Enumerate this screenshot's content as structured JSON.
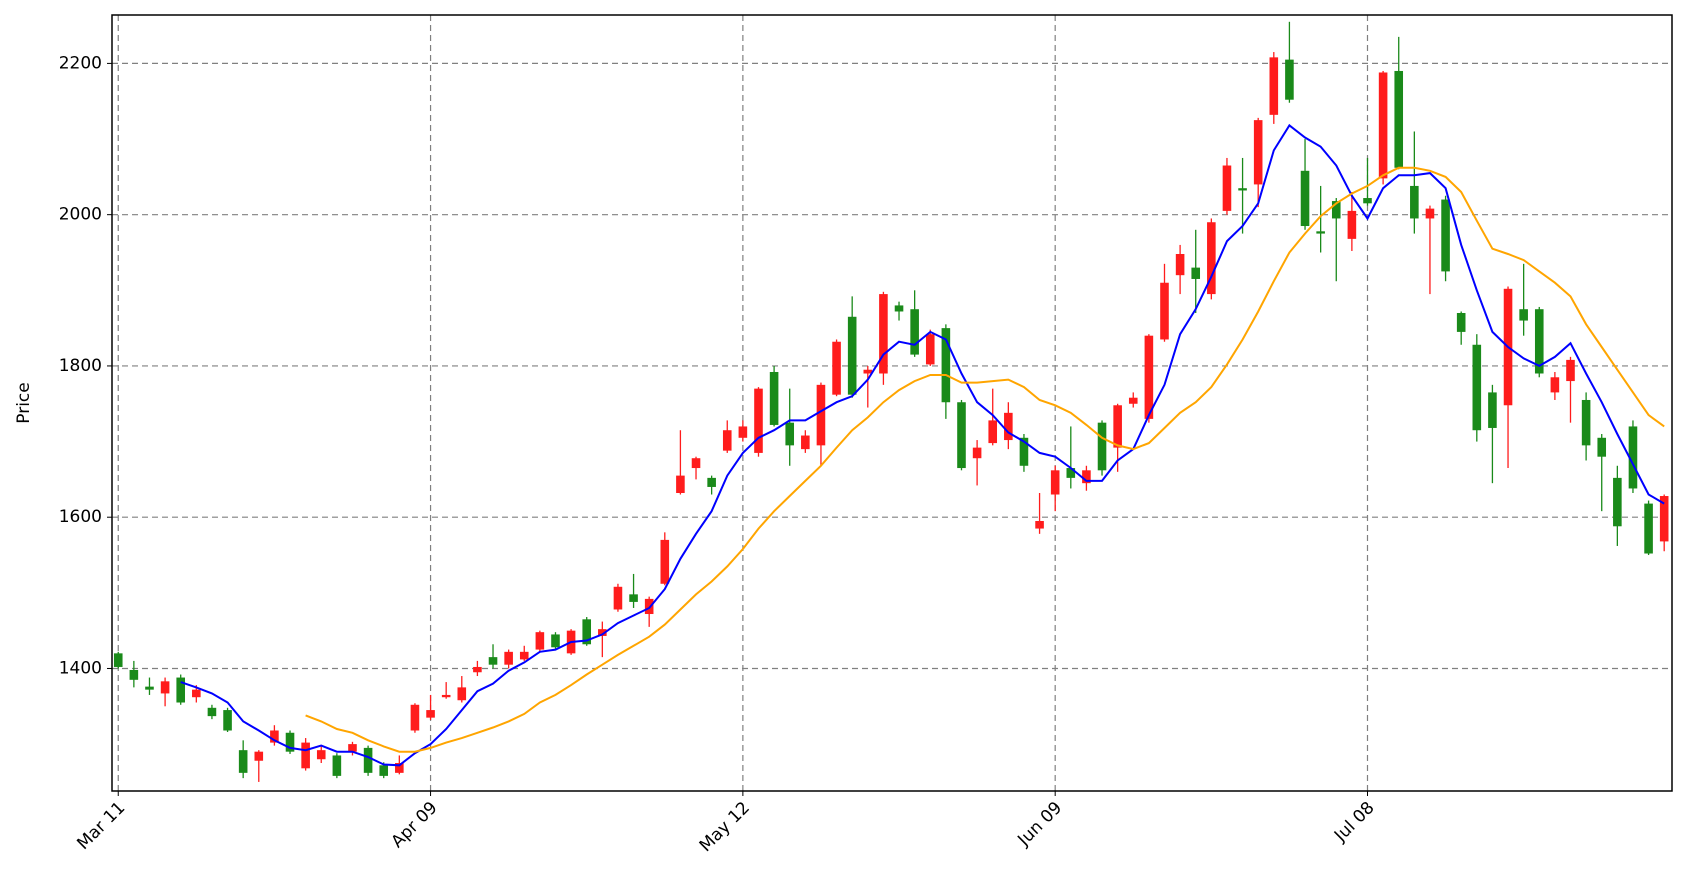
{
  "chart_data": {
    "type": "candlestick",
    "y_label": "Price",
    "categories": [
      "Mar 11",
      null,
      null,
      null,
      null,
      null,
      null,
      null,
      null,
      null,
      null,
      null,
      null,
      null,
      null,
      null,
      null,
      null,
      null,
      null,
      "Apr 09",
      null,
      null,
      null,
      null,
      null,
      null,
      null,
      null,
      null,
      null,
      null,
      null,
      null,
      null,
      null,
      null,
      null,
      null,
      null,
      "May 12",
      null,
      null,
      null,
      null,
      null,
      null,
      null,
      null,
      null,
      null,
      null,
      null,
      null,
      null,
      null,
      null,
      null,
      null,
      null,
      "Jun 09",
      null,
      null,
      null,
      null,
      null,
      null,
      null,
      null,
      null,
      null,
      null,
      null,
      null,
      null,
      null,
      null,
      null,
      null,
      null,
      "Jul 08",
      null,
      null,
      null,
      null,
      null,
      null,
      null,
      null,
      null,
      null,
      null,
      null,
      null,
      null,
      null,
      null,
      null,
      null,
      null
    ],
    "open": [
      1420,
      1398,
      1376,
      1367,
      1388,
      1362,
      1348,
      1345,
      1292,
      1278,
      1302,
      1315,
      1268,
      1280,
      1285,
      1290,
      1295,
      1272,
      1262,
      1318,
      1335,
      1362,
      1358,
      1395,
      1415,
      1405,
      1412,
      1425,
      1445,
      1420,
      1465,
      1443,
      1478,
      1498,
      1472,
      1512,
      1632,
      1665,
      1652,
      1688,
      1705,
      1685,
      1792,
      1725,
      1690,
      1695,
      1762,
      1865,
      1790,
      1790,
      1880,
      1875,
      1802,
      1850,
      1752,
      1678,
      1698,
      1702,
      1705,
      1585,
      1630,
      1665,
      1645,
      1725,
      1692,
      1750,
      1730,
      1835,
      1920,
      1930,
      1895,
      2005,
      2035,
      2040,
      2132,
      2205,
      2058,
      1978,
      2018,
      1968,
      2022,
      2048,
      2190,
      2038,
      1995,
      2020,
      1870,
      1828,
      1765,
      1748,
      1875,
      1875,
      1765,
      1780,
      1755,
      1705,
      1652,
      1720,
      1618,
      1568
    ],
    "high": [
      1422,
      1410,
      1388,
      1388,
      1392,
      1378,
      1352,
      1348,
      1305,
      1292,
      1325,
      1318,
      1308,
      1297,
      1288,
      1303,
      1298,
      1276,
      1285,
      1354,
      1365,
      1382,
      1390,
      1410,
      1432,
      1425,
      1430,
      1450,
      1448,
      1452,
      1468,
      1462,
      1512,
      1525,
      1495,
      1580,
      1715,
      1680,
      1655,
      1728,
      1728,
      1772,
      1800,
      1770,
      1715,
      1778,
      1835,
      1892,
      1800,
      1898,
      1885,
      1900,
      1848,
      1855,
      1755,
      1702,
      1770,
      1752,
      1710,
      1632,
      1668,
      1720,
      1668,
      1728,
      1750,
      1765,
      1842,
      1935,
      1960,
      1980,
      1995,
      2075,
      2075,
      2128,
      2215,
      2255,
      2100,
      2038,
      2022,
      2030,
      2075,
      2190,
      2235,
      2110,
      2012,
      2025,
      1872,
      1842,
      1775,
      1905,
      1935,
      1878,
      1792,
      1812,
      1765,
      1710,
      1668,
      1728,
      1622,
      1630
    ],
    "low": [
      1400,
      1375,
      1365,
      1350,
      1352,
      1355,
      1333,
      1316,
      1255,
      1250,
      1298,
      1287,
      1265,
      1275,
      1255,
      1285,
      1258,
      1255,
      1260,
      1315,
      1332,
      1360,
      1355,
      1390,
      1400,
      1400,
      1410,
      1422,
      1425,
      1418,
      1430,
      1415,
      1475,
      1480,
      1455,
      1510,
      1630,
      1650,
      1630,
      1685,
      1700,
      1680,
      1720,
      1668,
      1685,
      1668,
      1760,
      1758,
      1745,
      1775,
      1860,
      1812,
      1800,
      1730,
      1662,
      1642,
      1695,
      1690,
      1660,
      1578,
      1608,
      1638,
      1635,
      1655,
      1660,
      1745,
      1725,
      1832,
      1895,
      1870,
      1888,
      2000,
      1975,
      2010,
      2120,
      2148,
      1980,
      1950,
      1912,
      1952,
      2012,
      2040,
      2060,
      1975,
      1895,
      1912,
      1828,
      1700,
      1645,
      1665,
      1840,
      1785,
      1755,
      1725,
      1675,
      1608,
      1562,
      1632,
      1550,
      1555
    ],
    "close": [
      1402,
      1385,
      1372,
      1383,
      1355,
      1372,
      1337,
      1318,
      1262,
      1290,
      1318,
      1290,
      1302,
      1292,
      1258,
      1300,
      1262,
      1258,
      1275,
      1352,
      1345,
      1365,
      1375,
      1402,
      1405,
      1422,
      1422,
      1448,
      1428,
      1450,
      1432,
      1452,
      1508,
      1488,
      1492,
      1570,
      1655,
      1678,
      1640,
      1715,
      1720,
      1770,
      1722,
      1695,
      1708,
      1775,
      1832,
      1762,
      1795,
      1895,
      1872,
      1815,
      1842,
      1752,
      1665,
      1692,
      1728,
      1738,
      1668,
      1595,
      1662,
      1652,
      1662,
      1662,
      1748,
      1758,
      1840,
      1910,
      1948,
      1915,
      1990,
      2065,
      2032,
      2125,
      2208,
      2152,
      1985,
      1975,
      1995,
      2005,
      2015,
      2188,
      2062,
      1995,
      2008,
      1925,
      1845,
      1715,
      1718,
      1902,
      1860,
      1790,
      1785,
      1808,
      1695,
      1680,
      1588,
      1638,
      1552,
      1628
    ],
    "up_color": "#ff1c1c",
    "down_color": "#1a8a1a",
    "moving_averages": [
      {
        "color": "#0000ff",
        "values": [
          null,
          null,
          null,
          null,
          1382,
          1375,
          1367,
          1355,
          1330,
          1318,
          1305,
          1295,
          1292,
          1298,
          1290,
          1290,
          1283,
          1273,
          1272,
          1288,
          1300,
          1320,
          1345,
          1370,
          1380,
          1397,
          1408,
          1422,
          1425,
          1435,
          1437,
          1445,
          1460,
          1470,
          1480,
          1505,
          1545,
          1578,
          1608,
          1655,
          1685,
          1705,
          1715,
          1728,
          1728,
          1740,
          1752,
          1760,
          1782,
          1815,
          1832,
          1828,
          1845,
          1835,
          1790,
          1752,
          1735,
          1712,
          1700,
          1685,
          1680,
          1665,
          1648,
          1648,
          1675,
          1690,
          1735,
          1775,
          1842,
          1875,
          1918,
          1965,
          1985,
          2015,
          2085,
          2118,
          2102,
          2090,
          2065,
          2025,
          1995,
          2035,
          2052,
          2052,
          2055,
          2035,
          1960,
          1900,
          1845,
          1825,
          1810,
          1800,
          1812,
          1830,
          1790,
          1752,
          1710,
          1670,
          1630,
          1618
        ]
      },
      {
        "color": "#ffa500",
        "values": [
          null,
          null,
          null,
          null,
          null,
          null,
          null,
          null,
          null,
          null,
          null,
          null,
          1338,
          1330,
          1320,
          1315,
          1305,
          1297,
          1290,
          1290,
          1295,
          1302,
          1308,
          1315,
          1322,
          1330,
          1340,
          1355,
          1365,
          1378,
          1392,
          1405,
          1418,
          1430,
          1442,
          1458,
          1478,
          1498,
          1515,
          1535,
          1558,
          1585,
          1608,
          1628,
          1648,
          1668,
          1692,
          1715,
          1732,
          1752,
          1768,
          1780,
          1788,
          1788,
          1778,
          1778,
          1780,
          1782,
          1772,
          1755,
          1748,
          1738,
          1722,
          1705,
          1695,
          1690,
          1698,
          1718,
          1738,
          1752,
          1772,
          1802,
          1835,
          1872,
          1912,
          1950,
          1975,
          1998,
          2015,
          2028,
          2038,
          2052,
          2062,
          2062,
          2058,
          2050,
          2030,
          1992,
          1955,
          1948,
          1940,
          1925,
          1910,
          1892,
          1855,
          1825,
          1795,
          1765,
          1735,
          1720
        ]
      }
    ],
    "ylim": [
      1238,
      2264
    ],
    "yticks": [
      1400,
      1600,
      1800,
      2000,
      2200
    ],
    "grid": true
  }
}
